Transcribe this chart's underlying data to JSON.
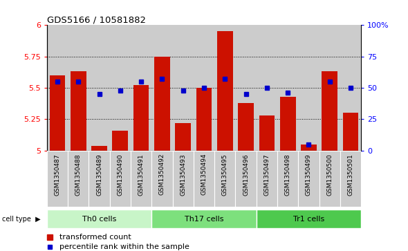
{
  "title": "GDS5166 / 10581882",
  "samples": [
    "GSM1350487",
    "GSM1350488",
    "GSM1350489",
    "GSM1350490",
    "GSM1350491",
    "GSM1350492",
    "GSM1350493",
    "GSM1350494",
    "GSM1350495",
    "GSM1350496",
    "GSM1350497",
    "GSM1350498",
    "GSM1350499",
    "GSM1350500",
    "GSM1350501"
  ],
  "transformed_count": [
    5.6,
    5.63,
    5.04,
    5.16,
    5.52,
    5.75,
    5.22,
    5.5,
    5.95,
    5.38,
    5.28,
    5.43,
    5.05,
    5.63,
    5.3
  ],
  "percentile_rank": [
    55,
    55,
    45,
    48,
    55,
    57,
    48,
    50,
    57,
    45,
    50,
    46,
    5,
    55,
    50
  ],
  "cell_types": [
    {
      "label": "Th0 cells",
      "start": 0,
      "end": 5,
      "color": "#c8f5c8"
    },
    {
      "label": "Th17 cells",
      "start": 5,
      "end": 10,
      "color": "#7de07d"
    },
    {
      "label": "Tr1 cells",
      "start": 10,
      "end": 15,
      "color": "#4ec94e"
    }
  ],
  "ylim_left": [
    5.0,
    6.0
  ],
  "ylim_right": [
    0,
    100
  ],
  "yticks_left": [
    5.0,
    5.25,
    5.5,
    5.75,
    6.0
  ],
  "yticks_right": [
    0,
    25,
    50,
    75,
    100
  ],
  "ytick_right_labels": [
    "0",
    "25",
    "50",
    "75",
    "100%"
  ],
  "grid_lines": [
    5.25,
    5.5,
    5.75
  ],
  "bar_color": "#cc1100",
  "dot_color": "#0000cc",
  "col_bg_even": "#d0d0d0",
  "col_bg_odd": "#d0d0d0",
  "legend_items": [
    "transformed count",
    "percentile rank within the sample"
  ]
}
